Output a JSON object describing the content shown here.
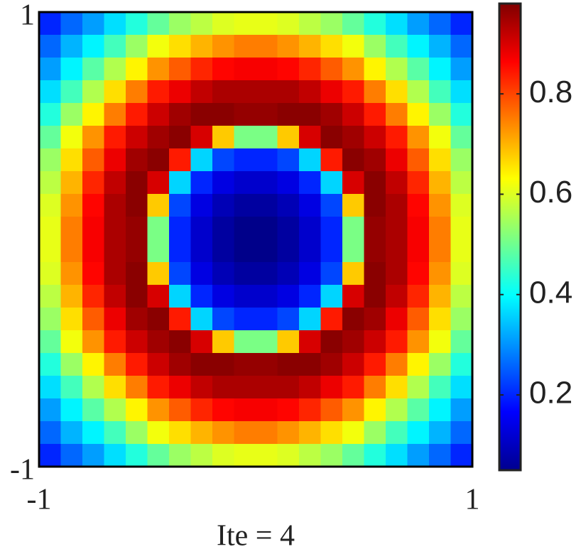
{
  "chart_data": {
    "type": "heatmap",
    "xlabel": "Ite = 4",
    "colormap": "jet",
    "xlim": [
      -1,
      1
    ],
    "ylim": [
      -1,
      1
    ],
    "xticks": [
      -1,
      1
    ],
    "yticks": [
      -1,
      1
    ],
    "clim": [
      0.05,
      0.98
    ],
    "cticks": [
      0.2,
      0.4,
      0.6,
      0.8
    ],
    "z": [
      [
        0.2,
        0.26,
        0.31,
        0.37,
        0.43,
        0.49,
        0.54,
        0.57,
        0.6,
        0.61,
        0.61,
        0.6,
        0.57,
        0.54,
        0.49,
        0.43,
        0.37,
        0.31,
        0.26,
        0.2
      ],
      [
        0.26,
        0.33,
        0.39,
        0.46,
        0.54,
        0.62,
        0.66,
        0.7,
        0.73,
        0.75,
        0.75,
        0.73,
        0.7,
        0.66,
        0.62,
        0.54,
        0.46,
        0.39,
        0.33,
        0.26
      ],
      [
        0.31,
        0.39,
        0.48,
        0.56,
        0.64,
        0.73,
        0.78,
        0.83,
        0.86,
        0.87,
        0.87,
        0.86,
        0.83,
        0.78,
        0.73,
        0.64,
        0.56,
        0.48,
        0.39,
        0.31
      ],
      [
        0.37,
        0.46,
        0.56,
        0.66,
        0.75,
        0.84,
        0.88,
        0.92,
        0.94,
        0.94,
        0.94,
        0.94,
        0.92,
        0.88,
        0.84,
        0.75,
        0.66,
        0.56,
        0.46,
        0.37
      ],
      [
        0.43,
        0.54,
        0.64,
        0.75,
        0.84,
        0.91,
        0.95,
        0.97,
        0.97,
        0.96,
        0.96,
        0.97,
        0.97,
        0.95,
        0.91,
        0.84,
        0.75,
        0.64,
        0.54,
        0.43
      ],
      [
        0.49,
        0.62,
        0.73,
        0.84,
        0.91,
        0.95,
        0.97,
        0.9,
        0.68,
        0.51,
        0.51,
        0.68,
        0.9,
        0.97,
        0.95,
        0.91,
        0.84,
        0.73,
        0.62,
        0.49
      ],
      [
        0.54,
        0.66,
        0.78,
        0.88,
        0.95,
        0.97,
        0.84,
        0.36,
        0.23,
        0.2,
        0.2,
        0.23,
        0.36,
        0.84,
        0.97,
        0.95,
        0.88,
        0.78,
        0.66,
        0.54
      ],
      [
        0.57,
        0.7,
        0.83,
        0.92,
        0.97,
        0.9,
        0.36,
        0.2,
        0.14,
        0.12,
        0.12,
        0.14,
        0.2,
        0.36,
        0.9,
        0.97,
        0.92,
        0.83,
        0.7,
        0.57
      ],
      [
        0.6,
        0.73,
        0.86,
        0.94,
        0.97,
        0.68,
        0.23,
        0.14,
        0.1,
        0.08,
        0.08,
        0.1,
        0.14,
        0.23,
        0.68,
        0.97,
        0.94,
        0.86,
        0.73,
        0.6
      ],
      [
        0.61,
        0.75,
        0.87,
        0.94,
        0.96,
        0.51,
        0.2,
        0.12,
        0.08,
        0.06,
        0.06,
        0.08,
        0.12,
        0.2,
        0.51,
        0.96,
        0.94,
        0.87,
        0.75,
        0.61
      ],
      [
        0.61,
        0.75,
        0.87,
        0.94,
        0.96,
        0.51,
        0.2,
        0.12,
        0.08,
        0.06,
        0.06,
        0.08,
        0.12,
        0.2,
        0.51,
        0.96,
        0.94,
        0.87,
        0.75,
        0.61
      ],
      [
        0.6,
        0.73,
        0.86,
        0.94,
        0.97,
        0.68,
        0.23,
        0.14,
        0.1,
        0.08,
        0.08,
        0.1,
        0.14,
        0.23,
        0.68,
        0.97,
        0.94,
        0.86,
        0.73,
        0.6
      ],
      [
        0.57,
        0.7,
        0.83,
        0.92,
        0.97,
        0.9,
        0.36,
        0.2,
        0.14,
        0.12,
        0.12,
        0.14,
        0.2,
        0.36,
        0.9,
        0.97,
        0.92,
        0.83,
        0.7,
        0.57
      ],
      [
        0.54,
        0.66,
        0.78,
        0.88,
        0.95,
        0.97,
        0.84,
        0.36,
        0.23,
        0.2,
        0.2,
        0.23,
        0.36,
        0.84,
        0.97,
        0.95,
        0.88,
        0.78,
        0.66,
        0.54
      ],
      [
        0.49,
        0.62,
        0.73,
        0.84,
        0.91,
        0.95,
        0.97,
        0.9,
        0.68,
        0.51,
        0.51,
        0.68,
        0.9,
        0.97,
        0.95,
        0.91,
        0.84,
        0.73,
        0.62,
        0.49
      ],
      [
        0.43,
        0.54,
        0.64,
        0.75,
        0.84,
        0.91,
        0.95,
        0.97,
        0.97,
        0.96,
        0.96,
        0.97,
        0.97,
        0.95,
        0.91,
        0.84,
        0.75,
        0.64,
        0.54,
        0.43
      ],
      [
        0.37,
        0.46,
        0.56,
        0.66,
        0.75,
        0.84,
        0.88,
        0.92,
        0.94,
        0.94,
        0.94,
        0.94,
        0.92,
        0.88,
        0.84,
        0.75,
        0.66,
        0.56,
        0.46,
        0.37
      ],
      [
        0.31,
        0.39,
        0.48,
        0.56,
        0.64,
        0.73,
        0.78,
        0.83,
        0.86,
        0.87,
        0.87,
        0.86,
        0.83,
        0.78,
        0.73,
        0.64,
        0.56,
        0.48,
        0.39,
        0.31
      ],
      [
        0.26,
        0.33,
        0.39,
        0.46,
        0.54,
        0.62,
        0.66,
        0.7,
        0.73,
        0.75,
        0.75,
        0.73,
        0.7,
        0.66,
        0.62,
        0.54,
        0.46,
        0.39,
        0.33,
        0.26
      ],
      [
        0.2,
        0.26,
        0.31,
        0.37,
        0.43,
        0.49,
        0.54,
        0.57,
        0.6,
        0.61,
        0.61,
        0.6,
        0.57,
        0.54,
        0.49,
        0.43,
        0.37,
        0.31,
        0.26,
        0.2
      ]
    ]
  }
}
